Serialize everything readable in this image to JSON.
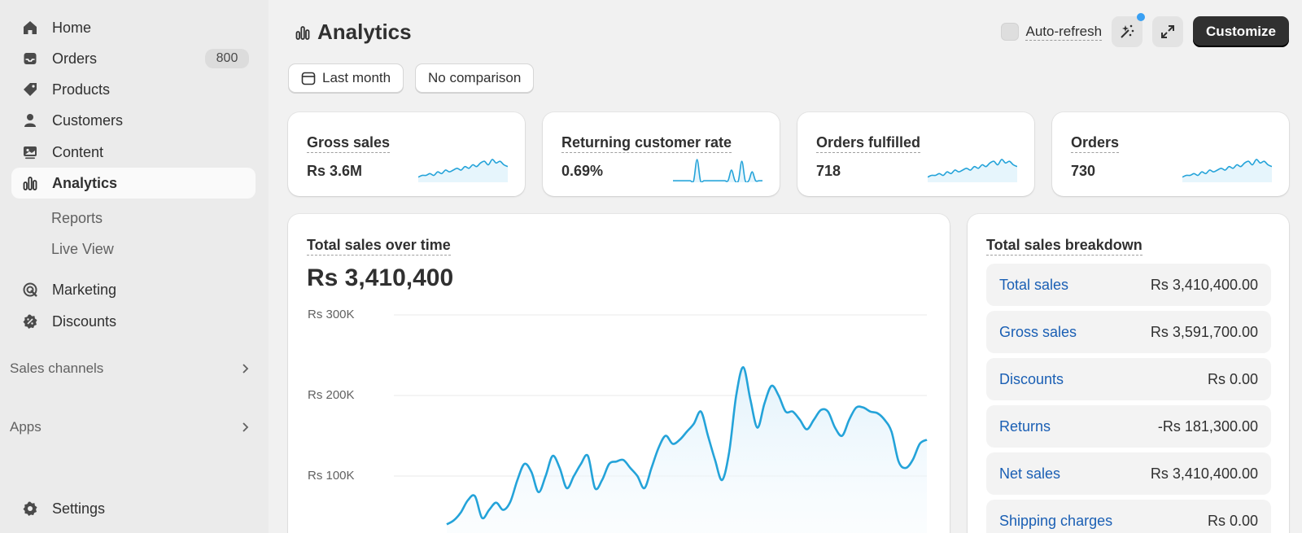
{
  "sidebar": {
    "items": [
      {
        "key": "home",
        "label": "Home",
        "icon": "home-icon"
      },
      {
        "key": "orders",
        "label": "Orders",
        "icon": "inbox-icon",
        "badge": "800"
      },
      {
        "key": "products",
        "label": "Products",
        "icon": "tag-icon"
      },
      {
        "key": "customers",
        "label": "Customers",
        "icon": "person-icon"
      },
      {
        "key": "content",
        "label": "Content",
        "icon": "image-icon"
      },
      {
        "key": "analytics",
        "label": "Analytics",
        "icon": "bar-chart-icon",
        "active": true
      }
    ],
    "analytics_sub": [
      {
        "label": "Reports"
      },
      {
        "label": "Live View"
      }
    ],
    "items2": [
      {
        "key": "marketing",
        "label": "Marketing",
        "icon": "target-icon"
      },
      {
        "key": "discounts",
        "label": "Discounts",
        "icon": "discount-icon"
      }
    ],
    "sections": [
      {
        "label": "Sales channels"
      },
      {
        "label": "Apps"
      }
    ],
    "settings": {
      "label": "Settings",
      "icon": "gear-icon"
    }
  },
  "header": {
    "title": "Analytics",
    "auto_refresh_label": "Auto-refresh",
    "customize_label": "Customize"
  },
  "filters": {
    "date_range": "Last month",
    "comparison": "No comparison"
  },
  "metrics": [
    {
      "title": "Gross sales",
      "value": "Rs 3.6M",
      "spark": [
        2,
        3,
        3,
        4,
        3,
        5,
        4,
        6,
        5,
        6,
        7,
        6,
        8,
        7,
        9,
        8,
        10,
        11,
        9,
        12,
        10,
        11,
        9,
        8
      ]
    },
    {
      "title": "Returning customer rate",
      "value": "0.69%",
      "spark": [
        0,
        0,
        0,
        0,
        0,
        0,
        0,
        12,
        0,
        0,
        0,
        0,
        0,
        0,
        0,
        0,
        0,
        6,
        0,
        0,
        11,
        0,
        0,
        5,
        0,
        0,
        0
      ]
    },
    {
      "title": "Orders fulfilled",
      "value": "718",
      "spark": [
        2,
        3,
        3,
        4,
        3,
        5,
        4,
        6,
        5,
        6,
        7,
        6,
        8,
        7,
        9,
        8,
        10,
        11,
        9,
        12,
        10,
        11,
        9,
        8
      ]
    },
    {
      "title": "Orders",
      "value": "730",
      "spark": [
        2,
        3,
        3,
        4,
        3,
        5,
        4,
        6,
        5,
        6,
        7,
        6,
        8,
        7,
        9,
        8,
        10,
        11,
        9,
        12,
        10,
        11,
        9,
        8
      ]
    }
  ],
  "sales_over_time": {
    "title": "Total sales over time",
    "value": "Rs 3,410,400"
  },
  "chart_data": {
    "type": "line",
    "title": "Total sales over time",
    "yticks": [
      "Rs 300K",
      "Rs 200K",
      "Rs 100K"
    ],
    "ytick_values": [
      300000,
      200000,
      100000
    ],
    "ylim": [
      0,
      300000
    ],
    "grid": true,
    "series": [
      {
        "values": [
          40000,
          45000,
          55000,
          70000,
          75000,
          48000,
          58000,
          67000,
          58000,
          68000,
          95000,
          115000,
          105000,
          80000,
          100000,
          125000,
          110000,
          85000,
          100000,
          115000,
          125000,
          85000,
          95000,
          115000,
          118000,
          120000,
          110000,
          100000,
          85000,
          110000,
          135000,
          150000,
          140000,
          145000,
          155000,
          165000,
          180000,
          150000,
          120000,
          95000,
          130000,
          200000,
          235000,
          195000,
          160000,
          190000,
          212000,
          200000,
          180000,
          180000,
          170000,
          158000,
          170000,
          182000,
          180000,
          160000,
          150000,
          170000,
          185000,
          185000,
          180000,
          178000,
          170000,
          155000,
          118000,
          110000,
          120000,
          140000,
          145000
        ]
      }
    ]
  },
  "breakdown": {
    "title": "Total sales breakdown",
    "rows": [
      {
        "label": "Total sales",
        "value": "Rs 3,410,400.00"
      },
      {
        "label": "Gross sales",
        "value": "Rs 3,591,700.00"
      },
      {
        "label": "Discounts",
        "value": "Rs 0.00"
      },
      {
        "label": "Returns",
        "value": "-Rs 181,300.00"
      },
      {
        "label": "Net sales",
        "value": "Rs 3,410,400.00"
      },
      {
        "label": "Shipping charges",
        "value": "Rs 0.00"
      }
    ]
  },
  "colors": {
    "accent_line": "#24a3d9",
    "link": "#1a5fb4",
    "primary_button": "#303030"
  }
}
